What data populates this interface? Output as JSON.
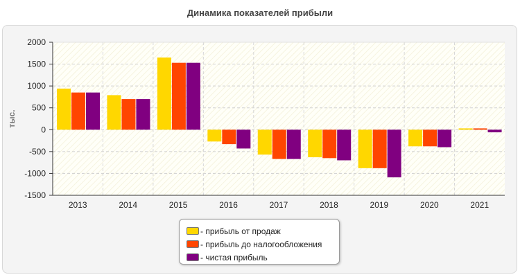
{
  "chart_data": {
    "type": "bar",
    "title": "Динамика показателей прибыли",
    "ylabel": "тыс.",
    "xlabel": "",
    "categories": [
      "2013",
      "2014",
      "2015",
      "2016",
      "2017",
      "2018",
      "2019",
      "2020",
      "2021"
    ],
    "ylim": [
      -1500,
      2000
    ],
    "yticks": [
      2000,
      1500,
      1000,
      500,
      0,
      -500,
      -1000,
      -1500
    ],
    "grid": true,
    "legend_position": "bottom-center",
    "series": [
      {
        "name": "прибыль от продаж",
        "color": "#ffd700",
        "values": [
          940,
          790,
          1650,
          -270,
          -570,
          -630,
          -880,
          -380,
          30
        ]
      },
      {
        "name": "прибыль до налогообложения",
        "color": "#ff4500",
        "values": [
          850,
          700,
          1530,
          -330,
          -670,
          -650,
          -880,
          -380,
          30
        ]
      },
      {
        "name": "чистая прибыль",
        "color": "#800080",
        "values": [
          850,
          700,
          1530,
          -430,
          -670,
          -700,
          -1090,
          -400,
          -60
        ]
      }
    ]
  }
}
